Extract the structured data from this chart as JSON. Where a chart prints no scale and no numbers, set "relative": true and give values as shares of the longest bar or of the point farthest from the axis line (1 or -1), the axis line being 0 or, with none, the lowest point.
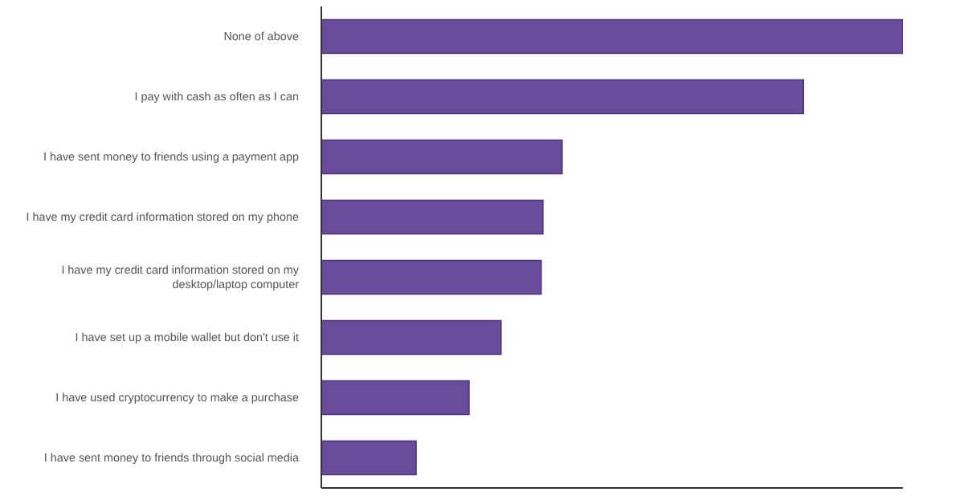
{
  "chart_data": {
    "type": "bar",
    "orientation": "horizontal",
    "relative": true,
    "categories": [
      "None of above",
      "I pay with cash as often as I can",
      "I have sent money to friends using a payment app",
      "I have my credit card information stored on my phone",
      "I have my credit card information stored on my desktop/laptop computer",
      "I have set up a mobile wallet but don't use it",
      "I have used cryptocurrency to make a purchase",
      "I have sent money to friends through social media"
    ],
    "values": [
      1,
      0.829,
      0.414,
      0.381,
      0.378,
      0.309,
      0.254,
      0.163
    ],
    "color": "#6a4c9c",
    "grid": false,
    "legend": false
  }
}
